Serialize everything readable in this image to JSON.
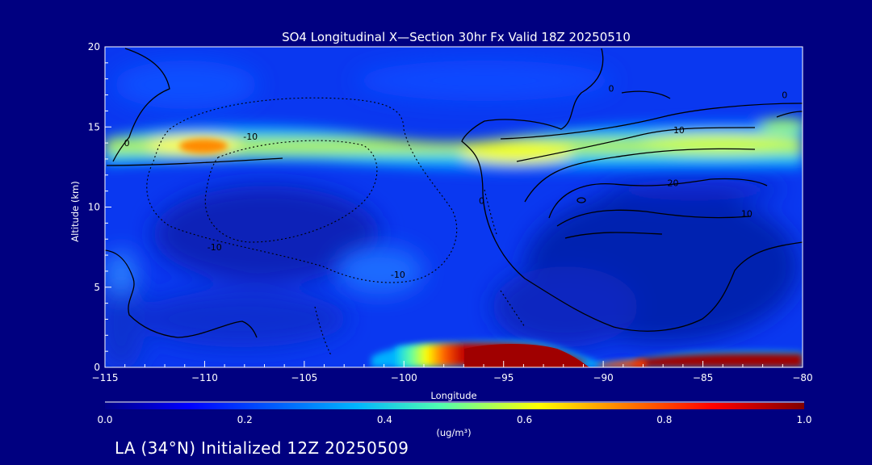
{
  "chart_data": {
    "type": "heatmap",
    "title": "SO4 Longitudinal X—Section 30hr  Fx Valid 18Z 20250510",
    "xlabel": "Longitude",
    "ylabel": "Altitude (km)",
    "xlim": [
      -115,
      -80
    ],
    "ylim": [
      0,
      20
    ],
    "xticks": [
      -115,
      -110,
      -105,
      -100,
      -95,
      -90,
      -85,
      -80
    ],
    "xtick_labels": [
      "−115",
      "−110",
      "−105",
      "−100",
      "−95",
      "−90",
      "−85",
      "−80"
    ],
    "yticks": [
      0,
      5,
      10,
      15,
      20
    ],
    "ytick_labels": [
      "0",
      "5",
      "10",
      "15",
      "20"
    ],
    "colorbar": {
      "min": 0.0,
      "max": 1.0,
      "ticks": [
        0.0,
        0.2,
        0.4,
        0.6,
        0.8,
        1.0
      ],
      "tick_labels": [
        "0.0",
        "0.2",
        "0.4",
        "0.6",
        "0.8",
        "1.0"
      ],
      "unit_label": "(ug/m³)"
    },
    "concentration_features": [
      {
        "lon_range": [
          -115,
          -80
        ],
        "alt_range": [
          12,
          16
        ],
        "value": 0.45,
        "desc": "upper-level SO4 band"
      },
      {
        "lon_range": [
          -111.5,
          -108.5
        ],
        "alt_range": [
          13.2,
          14.4
        ],
        "value": 0.72,
        "desc": "orange maximum near 14 km"
      },
      {
        "lon_range": [
          -98,
          -92
        ],
        "alt_range": [
          0,
          1.5
        ],
        "value": 1.0,
        "desc": "surface maximum"
      },
      {
        "lon_range": [
          -90,
          -80
        ],
        "alt_range": [
          0,
          0.8
        ],
        "value": 1.0,
        "desc": "surface maximum east"
      }
    ],
    "contour_labels": [
      {
        "text": "0",
        "lon": -113.9,
        "alt": 13.8
      },
      {
        "text": "-10",
        "lon": -107.7,
        "alt": 14.2
      },
      {
        "text": "-10",
        "lon": -109.5,
        "alt": 7.3
      },
      {
        "text": "-10",
        "lon": -100.3,
        "alt": 5.6
      },
      {
        "text": "0",
        "lon": -96.1,
        "alt": 10.2
      },
      {
        "text": "10",
        "lon": -86.2,
        "alt": 14.6
      },
      {
        "text": "20",
        "lon": -86.5,
        "alt": 11.3
      },
      {
        "text": "10",
        "lon": -82.8,
        "alt": 9.4
      },
      {
        "text": "0",
        "lon": -80.9,
        "alt": 16.8
      },
      {
        "text": "0",
        "lon": -89.6,
        "alt": 17.2
      }
    ]
  },
  "footer": {
    "caption": "LA (34°N) Initialized 12Z 20250509"
  }
}
